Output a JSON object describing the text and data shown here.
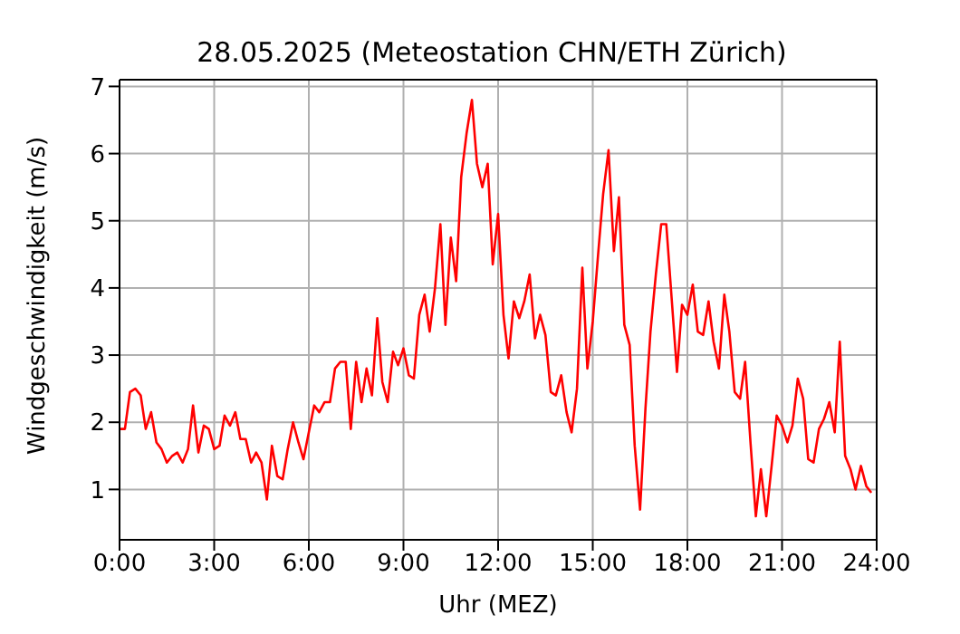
{
  "chart_data": {
    "type": "line",
    "title": "28.05.2025  (Meteostation CHN/ETH Zürich)",
    "xlabel": "Uhr (MEZ)",
    "ylabel": "Windgeschwindigkeit (m/s)",
    "x": [
      0,
      0.17,
      0.33,
      0.5,
      0.67,
      0.83,
      1,
      1.17,
      1.33,
      1.5,
      1.67,
      1.83,
      2,
      2.17,
      2.33,
      2.5,
      2.67,
      2.83,
      3,
      3.17,
      3.33,
      3.5,
      3.67,
      3.83,
      4,
      4.17,
      4.33,
      4.5,
      4.67,
      4.83,
      5,
      5.17,
      5.33,
      5.5,
      5.67,
      5.83,
      6,
      6.17,
      6.33,
      6.5,
      6.67,
      6.83,
      7,
      7.17,
      7.33,
      7.5,
      7.67,
      7.83,
      8,
      8.17,
      8.33,
      8.5,
      8.67,
      8.83,
      9,
      9.17,
      9.33,
      9.5,
      9.67,
      9.83,
      10,
      10.17,
      10.33,
      10.5,
      10.67,
      10.83,
      11,
      11.17,
      11.33,
      11.5,
      11.67,
      11.83,
      12,
      12.17,
      12.33,
      12.5,
      12.67,
      12.83,
      13,
      13.17,
      13.33,
      13.5,
      13.67,
      13.83,
      14,
      14.17,
      14.33,
      14.5,
      14.67,
      14.83,
      15,
      15.17,
      15.33,
      15.5,
      15.67,
      15.83,
      16,
      16.17,
      16.33,
      16.5,
      16.67,
      16.83,
      17,
      17.17,
      17.33,
      17.5,
      17.67,
      17.83,
      18,
      18.17,
      18.33,
      18.5,
      18.67,
      18.83,
      19,
      19.17,
      19.33,
      19.5,
      19.67,
      19.83,
      20,
      20.17,
      20.33,
      20.5,
      20.67,
      20.83,
      21,
      21.17,
      21.33,
      21.5,
      21.67,
      21.83,
      22,
      22.17,
      22.33,
      22.5,
      22.67,
      22.83,
      23,
      23.17,
      23.33,
      23.5,
      23.67,
      23.83
    ],
    "series": [
      {
        "color": "#ff0000",
        "values": [
          1.9,
          1.9,
          2.45,
          2.5,
          2.4,
          1.9,
          2.15,
          1.7,
          1.6,
          1.4,
          1.5,
          1.55,
          1.4,
          1.6,
          2.25,
          1.55,
          1.95,
          1.9,
          1.6,
          1.65,
          2.1,
          1.95,
          2.15,
          1.75,
          1.75,
          1.4,
          1.55,
          1.4,
          0.85,
          1.65,
          1.2,
          1.15,
          1.6,
          2.0,
          1.7,
          1.45,
          1.85,
          2.25,
          2.15,
          2.3,
          2.3,
          2.8,
          2.9,
          2.9,
          1.9,
          2.9,
          2.3,
          2.8,
          2.4,
          3.55,
          2.6,
          2.3,
          3.05,
          2.85,
          3.1,
          2.7,
          2.65,
          3.6,
          3.9,
          3.35,
          4.0,
          4.95,
          3.45,
          4.75,
          4.1,
          5.65,
          6.3,
          6.8,
          5.85,
          5.5,
          5.85,
          4.35,
          5.1,
          3.6,
          2.95,
          3.8,
          3.55,
          3.8,
          4.2,
          3.25,
          3.6,
          3.3,
          2.45,
          2.4,
          2.7,
          2.15,
          1.85,
          2.5,
          4.3,
          2.8,
          3.5,
          4.5,
          5.4,
          6.05,
          4.55,
          5.35,
          3.45,
          3.15,
          1.65,
          0.7,
          2.2,
          3.35,
          4.2,
          4.95,
          4.95,
          3.85,
          2.75,
          3.75,
          3.6,
          4.05,
          3.35,
          3.3,
          3.8,
          3.2,
          2.8,
          3.9,
          3.35,
          2.45,
          2.35,
          2.9,
          1.7,
          0.6,
          1.3,
          0.6,
          1.35,
          2.1,
          1.95,
          1.7,
          1.95,
          2.65,
          2.35,
          1.45,
          1.4,
          1.9,
          2.05,
          2.3,
          1.85,
          3.2,
          1.5,
          1.3,
          1.0,
          1.35,
          1.05,
          0.95
        ]
      }
    ],
    "xlim": [
      0,
      24
    ],
    "xticks": [
      {
        "value": 0,
        "label": "0:00"
      },
      {
        "value": 3,
        "label": "3:00"
      },
      {
        "value": 6,
        "label": "6:00"
      },
      {
        "value": 9,
        "label": "9:00"
      },
      {
        "value": 12,
        "label": "12:00"
      },
      {
        "value": 15,
        "label": "15:00"
      },
      {
        "value": 18,
        "label": "18:00"
      },
      {
        "value": 21,
        "label": "21:00"
      },
      {
        "value": 24,
        "label": "24:00"
      }
    ],
    "ylim": [
      0.25,
      7.1
    ],
    "yticks": [
      1,
      2,
      3,
      4,
      5,
      6,
      7
    ],
    "grid": true,
    "line_style": "solid"
  }
}
